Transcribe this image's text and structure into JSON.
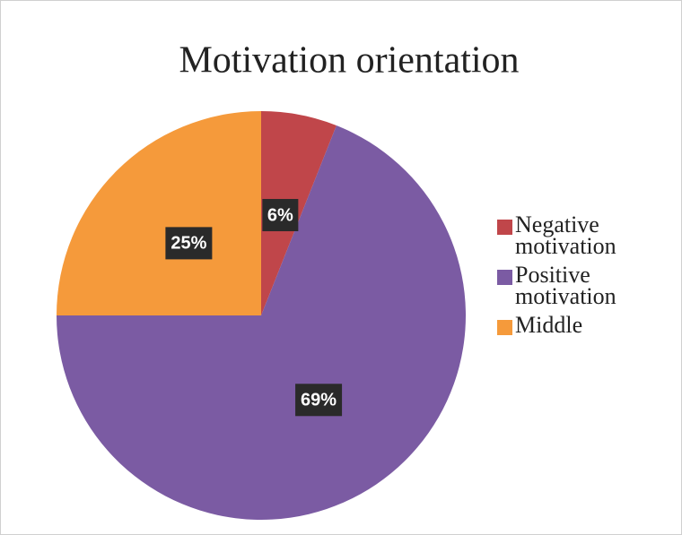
{
  "chart_data": {
    "type": "pie",
    "title": "Motivation orientation",
    "categories": [
      "Negative motivation",
      "Positive motivation",
      "Middle"
    ],
    "values": [
      6,
      69,
      25
    ],
    "value_labels": [
      "6%",
      "69%",
      "25%"
    ],
    "colors": [
      "#c0464a",
      "#7b5ba3",
      "#f59a3b"
    ],
    "legend": "right"
  }
}
